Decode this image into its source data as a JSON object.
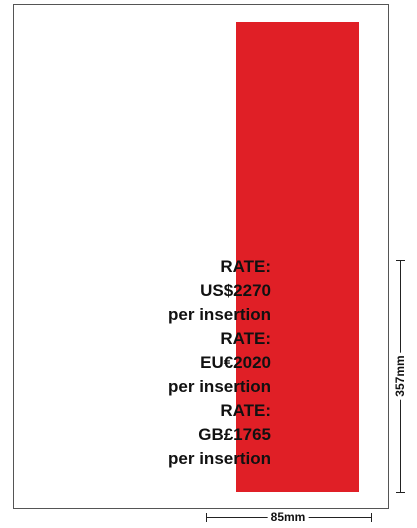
{
  "colors": {
    "ad_block": "#e01f26",
    "frame": "#555555",
    "text": "#111111"
  },
  "rates": [
    {
      "label": "RATE:",
      "price": "US$2270",
      "unit": "per insertion"
    },
    {
      "label": "RATE:",
      "price": "EU€2020",
      "unit": "per insertion"
    },
    {
      "label": "RATE:",
      "price": "GB£1765",
      "unit": "per insertion"
    }
  ],
  "dimensions": {
    "height": "357mm",
    "width": "85mm"
  }
}
